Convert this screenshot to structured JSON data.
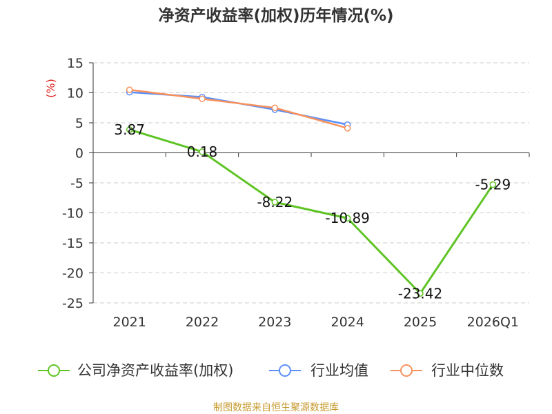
{
  "chart_data": {
    "type": "line",
    "title": "净资产收益率(加权)历年情况(%)",
    "ylabel": "(%)",
    "categories": [
      "2021",
      "2022",
      "2023",
      "2024",
      "2025",
      "2026Q1"
    ],
    "ylim": [
      -25,
      15
    ],
    "yticks": [
      15,
      10,
      5,
      0,
      -5,
      -10,
      -15,
      -20,
      -25
    ],
    "ytick_labels": [
      "15",
      "10",
      "5",
      "0",
      "-5",
      "-10",
      "-15",
      "-20",
      "-25"
    ],
    "grid": true,
    "legend_position": "bottom",
    "series": [
      {
        "name": "公司净资产收益率(加权)",
        "color": "#5ec424",
        "values": [
          3.87,
          0.18,
          -8.22,
          -10.89,
          -23.42,
          -5.29
        ],
        "labels": [
          "3.87",
          "0.18",
          "-8.22",
          "-10.89",
          "-23.42",
          "-5.29"
        ]
      },
      {
        "name": "行业均值",
        "color": "#5b8ff9",
        "values": [
          10.1,
          9.3,
          7.2,
          4.7,
          null,
          null
        ]
      },
      {
        "name": "行业中位数",
        "color": "#f7925c",
        "values": [
          10.5,
          9.0,
          7.5,
          4.1,
          null,
          null
        ]
      }
    ]
  },
  "footer": {
    "source": "制图数据来自恒生聚源数据库"
  }
}
